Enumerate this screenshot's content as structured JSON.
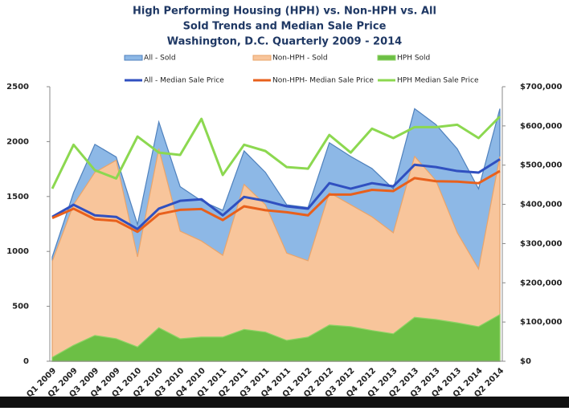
{
  "chart_data": {
    "type": "area",
    "title": [
      "High Performing Housing (HPH)  vs.  Non-HPH  vs.  All",
      "Sold Trends and Median Sale Price",
      "Washington, D.C.            Quarterly 2009 - 2014"
    ],
    "categories": [
      "Q1 2009",
      "Q2 2009",
      "Q3 2009",
      "Q4 2009",
      "Q1 2010",
      "Q2 2010",
      "Q3 2010",
      "Q4 2010",
      "Q1 2011",
      "Q2 2011",
      "Q3 2011",
      "Q4 2011",
      "Q1 2012",
      "Q2 2012",
      "Q3 2012",
      "Q4 2012",
      "Q1 2013",
      "Q2 2013",
      "Q3 2013",
      "Q4 2013",
      "Q1 2014",
      "Q2 2014"
    ],
    "series": [
      {
        "name": "All - Sold",
        "type": "area",
        "color": "#8db8e6",
        "edge": "#4f81bd",
        "values": [
          950,
          1535,
          1975,
          1860,
          1245,
          2180,
          1590,
          1460,
          1375,
          1915,
          1720,
          1425,
          1400,
          1990,
          1865,
          1755,
          1570,
          2300,
          2155,
          1935,
          1570,
          2300
        ]
      },
      {
        "name": "Non-HPH - Sold",
        "type": "area",
        "color": "#f8c59b",
        "edge": "#e9a46a",
        "values": [
          910,
          1425,
          1720,
          1830,
          950,
          1935,
          1185,
          1095,
          965,
          1610,
          1425,
          985,
          915,
          1535,
          1425,
          1315,
          1170,
          1865,
          1645,
          1170,
          840,
          1865
        ]
      },
      {
        "name": "HPH Sold",
        "type": "area",
        "color": "#6cbf45",
        "edge": "#8fd366",
        "values": [
          35,
          145,
          235,
          205,
          130,
          305,
          205,
          220,
          220,
          290,
          265,
          190,
          220,
          330,
          315,
          280,
          250,
          400,
          380,
          350,
          315,
          425
        ]
      },
      {
        "name": "All - Median Sale Price",
        "type": "line",
        "axis": "y2",
        "color": "#3050c0",
        "values": [
          368000,
          399000,
          372000,
          368000,
          337000,
          389000,
          409000,
          413000,
          372000,
          419000,
          409000,
          395000,
          389000,
          454000,
          440000,
          454000,
          446000,
          501000,
          495000,
          485000,
          481000,
          515000
        ]
      },
      {
        "name": "Non-HPH- Median Sale Price",
        "type": "line",
        "axis": "y2",
        "color": "#e8601c",
        "values": [
          365000,
          389000,
          362000,
          358000,
          330000,
          375000,
          386000,
          388000,
          360000,
          395000,
          385000,
          380000,
          372000,
          425000,
          425000,
          437000,
          434000,
          467000,
          459000,
          458000,
          454000,
          485000
        ]
      },
      {
        "name": "HPH Median Sale Price",
        "type": "line",
        "axis": "y2",
        "color": "#8cd850",
        "values": [
          440000,
          552000,
          487000,
          466000,
          573000,
          532000,
          526000,
          618000,
          475000,
          552000,
          536000,
          495000,
          491000,
          577000,
          532000,
          593000,
          569000,
          597000,
          597000,
          603000,
          569000,
          624000
        ]
      }
    ],
    "ylim": [
      0,
      2500
    ],
    "yticks": [
      0,
      500,
      1000,
      1500,
      2000,
      2500
    ],
    "y2lim": [
      0,
      700000
    ],
    "y2ticks": [
      {
        "value": 0,
        "label": "$0"
      },
      {
        "value": 100000,
        "label": "$100,000"
      },
      {
        "value": 200000,
        "label": "$200,000"
      },
      {
        "value": 300000,
        "label": "$300,000"
      },
      {
        "value": 400000,
        "label": "$400,000"
      },
      {
        "value": 500000,
        "label": "$500,000"
      },
      {
        "value": 600000,
        "label": "$600,000"
      },
      {
        "value": 700000,
        "label": "$700,000"
      }
    ]
  }
}
